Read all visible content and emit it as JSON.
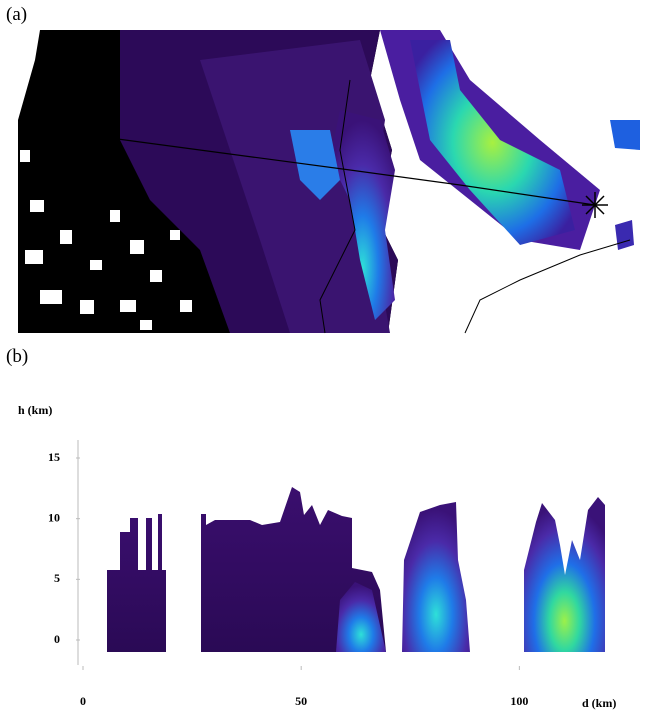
{
  "panel_a": {
    "label": "(a)"
  },
  "chart_data": {
    "type": "area",
    "label": "(b)",
    "ylabel": "h (km)",
    "xlabel": "d (km)",
    "xlim": [
      0,
      121
    ],
    "xticks": [
      0,
      50,
      100
    ],
    "ylim": [
      0,
      15
    ],
    "yticks": [
      0,
      5,
      10,
      15
    ]
  }
}
